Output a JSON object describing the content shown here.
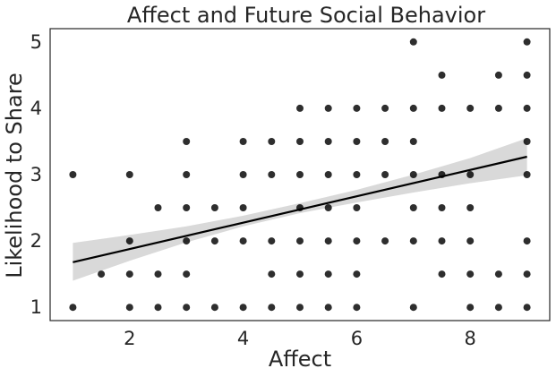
{
  "chart_data": {
    "type": "scatter",
    "title": "Affect and Future Social Behavior",
    "xlabel": "Affect",
    "ylabel": "Likelihood to Share",
    "xlim": [
      0.6,
      9.4
    ],
    "ylim": [
      0.8,
      5.2
    ],
    "xticks": [
      2,
      4,
      6,
      8
    ],
    "yticks": [
      1,
      2,
      3,
      4,
      5
    ],
    "grid": false,
    "legend": "none",
    "point_color": "#000000",
    "band_color": "#d9d9d9",
    "line_color": "#000000",
    "points": [
      [
        1,
        1
      ],
      [
        1,
        3
      ],
      [
        1.5,
        1.5
      ],
      [
        2,
        1
      ],
      [
        2,
        1.5
      ],
      [
        2,
        2
      ],
      [
        2,
        3
      ],
      [
        2.5,
        1
      ],
      [
        2.5,
        1.5
      ],
      [
        2.5,
        2.5
      ],
      [
        3,
        1
      ],
      [
        3,
        1.5
      ],
      [
        3,
        2
      ],
      [
        3,
        2.5
      ],
      [
        3,
        3
      ],
      [
        3,
        3.5
      ],
      [
        3.5,
        1
      ],
      [
        3.5,
        2
      ],
      [
        3.5,
        2.5
      ],
      [
        4,
        1
      ],
      [
        4,
        2
      ],
      [
        4,
        2.5
      ],
      [
        4,
        3
      ],
      [
        4,
        3.5
      ],
      [
        4.5,
        1
      ],
      [
        4.5,
        1.5
      ],
      [
        4.5,
        2
      ],
      [
        4.5,
        3
      ],
      [
        4.5,
        3.5
      ],
      [
        5,
        1
      ],
      [
        5,
        1.5
      ],
      [
        5,
        2
      ],
      [
        5,
        2.5
      ],
      [
        5,
        3
      ],
      [
        5,
        3.5
      ],
      [
        5,
        4
      ],
      [
        5.5,
        1
      ],
      [
        5.5,
        1.5
      ],
      [
        5.5,
        2
      ],
      [
        5.5,
        2.5
      ],
      [
        5.5,
        3
      ],
      [
        5.5,
        3.5
      ],
      [
        5.5,
        4
      ],
      [
        6,
        1
      ],
      [
        6,
        1.5
      ],
      [
        6,
        2
      ],
      [
        6,
        2.5
      ],
      [
        6,
        3
      ],
      [
        6,
        3.5
      ],
      [
        6,
        4
      ],
      [
        6.5,
        2
      ],
      [
        6.5,
        3
      ],
      [
        6.5,
        3.5
      ],
      [
        6.5,
        4
      ],
      [
        7,
        1
      ],
      [
        7,
        2
      ],
      [
        7,
        2.5
      ],
      [
        7,
        3
      ],
      [
        7,
        3.5
      ],
      [
        7,
        4
      ],
      [
        7,
        5
      ],
      [
        7.5,
        1.5
      ],
      [
        7.5,
        2
      ],
      [
        7.5,
        2.5
      ],
      [
        7.5,
        3
      ],
      [
        7.5,
        4
      ],
      [
        7.5,
        4.5
      ],
      [
        8,
        1
      ],
      [
        8,
        1.5
      ],
      [
        8,
        2
      ],
      [
        8,
        2.5
      ],
      [
        8,
        3
      ],
      [
        8,
        4
      ],
      [
        8.5,
        1
      ],
      [
        8.5,
        1.5
      ],
      [
        8.5,
        4
      ],
      [
        8.5,
        4.5
      ],
      [
        9,
        1
      ],
      [
        9,
        1.5
      ],
      [
        9,
        2
      ],
      [
        9,
        3
      ],
      [
        9,
        3.5
      ],
      [
        9,
        4
      ],
      [
        9,
        4.5
      ],
      [
        9,
        5
      ]
    ],
    "regression": {
      "x": [
        1,
        9
      ],
      "y": [
        1.68,
        3.27
      ]
    },
    "confidence_band": {
      "x": [
        1,
        2,
        3,
        4,
        5,
        6,
        7,
        8,
        9
      ],
      "lower": [
        1.4,
        1.7,
        1.98,
        2.22,
        2.42,
        2.58,
        2.73,
        2.87,
        2.99
      ],
      "upper": [
        1.97,
        2.09,
        2.22,
        2.38,
        2.57,
        2.77,
        3.0,
        3.25,
        3.55
      ]
    }
  }
}
